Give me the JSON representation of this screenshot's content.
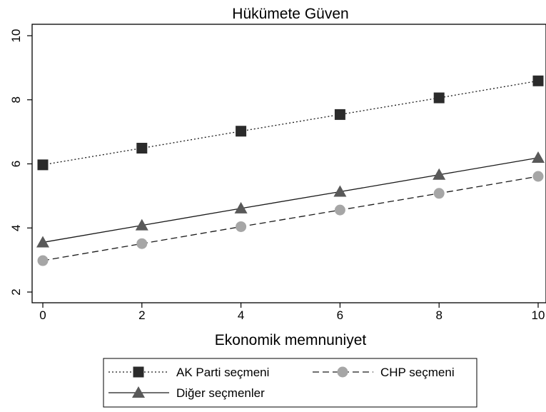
{
  "chart_data": {
    "type": "line",
    "title": "Hükümete Güven",
    "xlabel": "Ekonomik memnuniyet",
    "ylabel": "",
    "xlim": [
      0,
      10
    ],
    "ylim": [
      2,
      10
    ],
    "x_ticks": [
      "0",
      "2",
      "4",
      "6",
      "8",
      "10"
    ],
    "y_ticks": [
      "2",
      "4",
      "6",
      "8",
      "10"
    ],
    "grid": false,
    "legend_position": "bottom",
    "x": [
      0,
      2,
      4,
      6,
      8,
      10
    ],
    "series": [
      {
        "name": "AK Parti seçmeni",
        "values": [
          5.97,
          6.49,
          7.02,
          7.54,
          8.06,
          8.59
        ],
        "line_style": "dotted",
        "marker": "square",
        "color": "#2b2b2b"
      },
      {
        "name": "CHP seçmeni",
        "values": [
          2.98,
          3.51,
          4.04,
          4.56,
          5.08,
          5.61
        ],
        "line_style": "dashed",
        "marker": "circle",
        "color": "#a6a6a6"
      },
      {
        "name": "Diğer seçmenler",
        "values": [
          3.55,
          4.08,
          4.61,
          5.13,
          5.66,
          6.19
        ],
        "line_style": "solid",
        "marker": "triangle",
        "color": "#595959"
      }
    ]
  }
}
